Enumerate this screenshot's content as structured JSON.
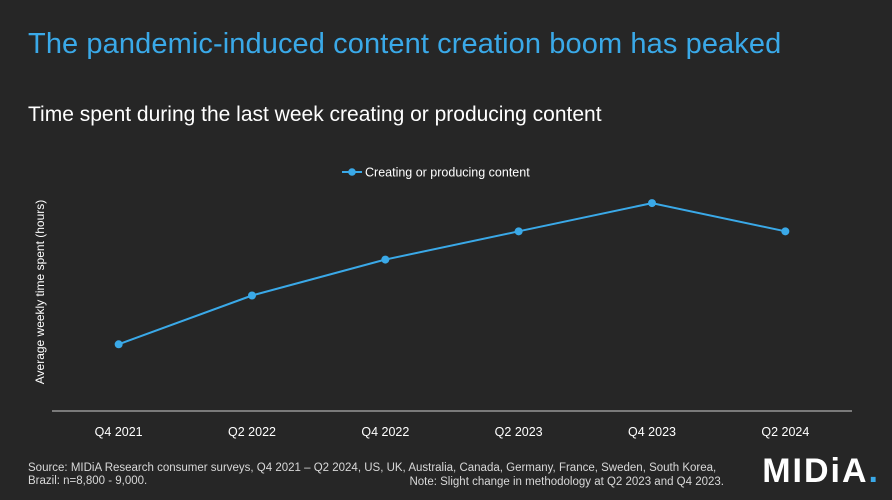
{
  "headline": "The pandemic-induced content creation boom has peaked",
  "source": "Source: MIDiA Research consumer surveys, Q4 2021 – Q2 2024, US, UK, Australia, Canada, Germany, France, Sweden, South Korea, Brazil: n=8,800 - 9,000.",
  "note": "Note: Slight change in methodology at Q2 2023 and Q4 2023.",
  "logo": {
    "text": "MIDiA",
    "dot": "."
  },
  "colors": {
    "accent": "#3aa9e8",
    "background": "#262626",
    "axis": "#cfcfcf"
  },
  "chart_data": {
    "type": "line",
    "title": "Time spent during the last week creating or producing content",
    "ylabel": "Average weekly time spent (hours)",
    "xlabel": "",
    "categories": [
      "Q4 2021",
      "Q2 2022",
      "Q4 2022",
      "Q2 2023",
      "Q4 2023",
      "Q2 2024"
    ],
    "series": [
      {
        "name": "Creating or producing content",
        "values": [
          2.6,
          4.5,
          5.9,
          7.0,
          8.1,
          7.0
        ],
        "color": "#3aa9e8"
      }
    ],
    "ylim": [
      0,
      9
    ],
    "y_tick_labels_shown": false,
    "grid": false,
    "legend": "top-center"
  }
}
